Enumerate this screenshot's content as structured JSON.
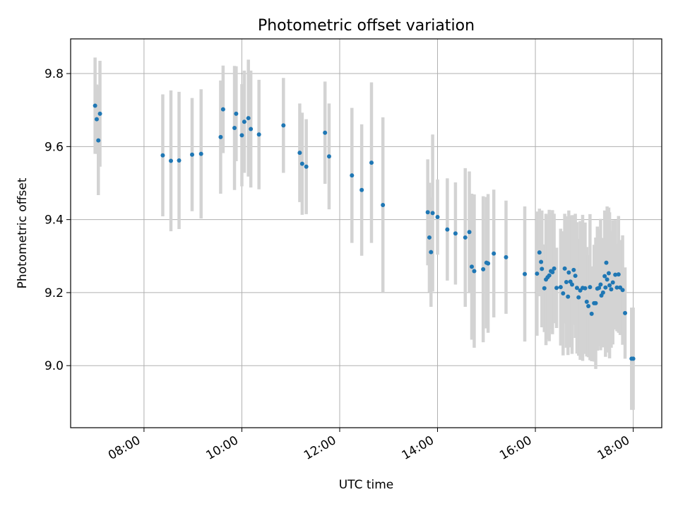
{
  "chart_data": {
    "type": "scatter",
    "title": "Photometric offset variation",
    "xlabel": "UTC time",
    "ylabel": "Photometric offset",
    "xlim": [
      "06:30",
      "18:35"
    ],
    "ylim": [
      8.83,
      9.895
    ],
    "x_ticks": [
      "08:00",
      "10:00",
      "12:00",
      "14:00",
      "16:00",
      "18:00"
    ],
    "y_ticks": [
      9.0,
      9.2,
      9.4,
      9.6,
      9.8
    ],
    "y_tick_labels": [
      "9.0",
      "9.2",
      "9.4",
      "9.6",
      "9.8"
    ],
    "grid": true,
    "colors": {
      "points": "#1f77b4",
      "error_bars": "#d3d3d3",
      "grid": "#b0b0b0"
    },
    "x_format": "HH:MM UTC",
    "y_format": "photometric offset",
    "points": [
      {
        "x": "07:00",
        "y": 9.712,
        "err": 0.132
      },
      {
        "x": "07:02",
        "y": 9.675,
        "err": 0.095
      },
      {
        "x": "07:04",
        "y": 9.617,
        "err": 0.15
      },
      {
        "x": "07:06",
        "y": 9.69,
        "err": 0.145
      },
      {
        "x": "08:23",
        "y": 9.576,
        "err": 0.167
      },
      {
        "x": "08:33",
        "y": 9.561,
        "err": 0.193
      },
      {
        "x": "08:43",
        "y": 9.562,
        "err": 0.188
      },
      {
        "x": "08:59",
        "y": 9.578,
        "err": 0.155
      },
      {
        "x": "09:10",
        "y": 9.58,
        "err": 0.177
      },
      {
        "x": "09:34",
        "y": 9.626,
        "err": 0.155
      },
      {
        "x": "09:37",
        "y": 9.702,
        "err": 0.12
      },
      {
        "x": "09:51",
        "y": 9.651,
        "err": 0.17
      },
      {
        "x": "09:53",
        "y": 9.69,
        "err": 0.13
      },
      {
        "x": "10:00",
        "y": 9.631,
        "err": 0.14
      },
      {
        "x": "10:03",
        "y": 9.668,
        "err": 0.14
      },
      {
        "x": "10:08",
        "y": 9.678,
        "err": 0.16
      },
      {
        "x": "10:11",
        "y": 9.648,
        "err": 0.16
      },
      {
        "x": "10:21",
        "y": 9.633,
        "err": 0.15
      },
      {
        "x": "10:51",
        "y": 9.658,
        "err": 0.13
      },
      {
        "x": "11:11",
        "y": 9.583,
        "err": 0.135
      },
      {
        "x": "11:14",
        "y": 9.553,
        "err": 0.14
      },
      {
        "x": "11:19",
        "y": 9.545,
        "err": 0.13
      },
      {
        "x": "11:42",
        "y": 9.638,
        "err": 0.14
      },
      {
        "x": "11:47",
        "y": 9.573,
        "err": 0.145
      },
      {
        "x": "12:15",
        "y": 9.521,
        "err": 0.185
      },
      {
        "x": "12:27",
        "y": 9.481,
        "err": 0.18
      },
      {
        "x": "12:39",
        "y": 9.556,
        "err": 0.22
      },
      {
        "x": "12:53",
        "y": 9.44,
        "err": 0.24
      },
      {
        "x": "13:48",
        "y": 9.42,
        "err": 0.145
      },
      {
        "x": "13:50",
        "y": 9.351,
        "err": 0.15
      },
      {
        "x": "13:52",
        "y": 9.311,
        "err": 0.15
      },
      {
        "x": "13:54",
        "y": 9.418,
        "err": 0.215
      },
      {
        "x": "14:00",
        "y": 9.407,
        "err": 0.103
      },
      {
        "x": "14:12",
        "y": 9.373,
        "err": 0.14
      },
      {
        "x": "14:22",
        "y": 9.362,
        "err": 0.14
      },
      {
        "x": "14:34",
        "y": 9.351,
        "err": 0.19
      },
      {
        "x": "14:39",
        "y": 9.366,
        "err": 0.166
      },
      {
        "x": "14:42",
        "y": 9.271,
        "err": 0.2
      },
      {
        "x": "14:45",
        "y": 9.259,
        "err": 0.21
      },
      {
        "x": "14:56",
        "y": 9.264,
        "err": 0.2
      },
      {
        "x": "15:00",
        "y": 9.282,
        "err": 0.18
      },
      {
        "x": "15:02",
        "y": 9.28,
        "err": 0.19
      },
      {
        "x": "15:09",
        "y": 9.307,
        "err": 0.175
      },
      {
        "x": "15:24",
        "y": 9.297,
        "err": 0.155
      },
      {
        "x": "15:47",
        "y": 9.251,
        "err": 0.185
      },
      {
        "x": "16:02",
        "y": 9.252,
        "err": 0.17
      },
      {
        "x": "16:05",
        "y": 9.31,
        "err": 0.12
      },
      {
        "x": "16:07",
        "y": 9.284,
        "err": 0.09
      },
      {
        "x": "16:08",
        "y": 9.265,
        "err": 0.16
      },
      {
        "x": "16:11",
        "y": 9.212,
        "err": 0.12
      },
      {
        "x": "16:13",
        "y": 9.236,
        "err": 0.18
      },
      {
        "x": "16:15",
        "y": 9.242,
        "err": 0.17
      },
      {
        "x": "16:17",
        "y": 9.247,
        "err": 0.18
      },
      {
        "x": "16:19",
        "y": 9.259,
        "err": 0.16
      },
      {
        "x": "16:21",
        "y": 9.256,
        "err": 0.17
      },
      {
        "x": "16:23",
        "y": 9.266,
        "err": 0.15
      },
      {
        "x": "16:26",
        "y": 9.213,
        "err": 0.11
      },
      {
        "x": "16:31",
        "y": 9.215,
        "err": 0.16
      },
      {
        "x": "16:34",
        "y": 9.198,
        "err": 0.17
      },
      {
        "x": "16:36",
        "y": 9.266,
        "err": 0.15
      },
      {
        "x": "16:38",
        "y": 9.229,
        "err": 0.18
      },
      {
        "x": "16:40",
        "y": 9.189,
        "err": 0.16
      },
      {
        "x": "16:41",
        "y": 9.255,
        "err": 0.17
      },
      {
        "x": "16:43",
        "y": 9.23,
        "err": 0.18
      },
      {
        "x": "16:45",
        "y": 9.222,
        "err": 0.19
      },
      {
        "x": "16:47",
        "y": 9.262,
        "err": 0.15
      },
      {
        "x": "16:49",
        "y": 9.246,
        "err": 0.17
      },
      {
        "x": "16:51",
        "y": 9.213,
        "err": 0.18
      },
      {
        "x": "16:53",
        "y": 9.187,
        "err": 0.16
      },
      {
        "x": "16:55",
        "y": 9.206,
        "err": 0.19
      },
      {
        "x": "16:58",
        "y": 9.213,
        "err": 0.2
      },
      {
        "x": "17:01",
        "y": 9.212,
        "err": 0.18
      },
      {
        "x": "17:03",
        "y": 9.175,
        "err": 0.15
      },
      {
        "x": "17:05",
        "y": 9.163,
        "err": 0.14
      },
      {
        "x": "17:07",
        "y": 9.215,
        "err": 0.2
      },
      {
        "x": "17:09",
        "y": 9.142,
        "err": 0.13
      },
      {
        "x": "17:12",
        "y": 9.171,
        "err": 0.16
      },
      {
        "x": "17:14",
        "y": 9.171,
        "err": 0.18
      },
      {
        "x": "17:16",
        "y": 9.211,
        "err": 0.17
      },
      {
        "x": "17:18",
        "y": 9.213,
        "err": 0.16
      },
      {
        "x": "17:20",
        "y": 9.222,
        "err": 0.18
      },
      {
        "x": "17:21",
        "y": 9.192,
        "err": 0.14
      },
      {
        "x": "17:23",
        "y": 9.2,
        "err": 0.15
      },
      {
        "x": "17:25",
        "y": 9.245,
        "err": 0.18
      },
      {
        "x": "17:26",
        "y": 9.214,
        "err": 0.19
      },
      {
        "x": "17:27",
        "y": 9.282,
        "err": 0.12
      },
      {
        "x": "17:28",
        "y": 9.236,
        "err": 0.2
      },
      {
        "x": "17:30",
        "y": 9.253,
        "err": 0.18
      },
      {
        "x": "17:31",
        "y": 9.22,
        "err": 0.2
      },
      {
        "x": "17:33",
        "y": 9.209,
        "err": 0.16
      },
      {
        "x": "17:35",
        "y": 9.228,
        "err": 0.17
      },
      {
        "x": "17:38",
        "y": 9.249,
        "err": 0.15
      },
      {
        "x": "17:40",
        "y": 9.214,
        "err": 0.12
      },
      {
        "x": "17:42",
        "y": 9.25,
        "err": 0.16
      },
      {
        "x": "17:44",
        "y": 9.214,
        "err": 0.13
      },
      {
        "x": "17:47",
        "y": 9.207,
        "err": 0.15
      },
      {
        "x": "17:50",
        "y": 9.144,
        "err": 0.125
      },
      {
        "x": "17:58",
        "y": 9.019,
        "err": 0.14
      },
      {
        "x": "18:00",
        "y": 9.019,
        "err": 0.14
      }
    ]
  }
}
